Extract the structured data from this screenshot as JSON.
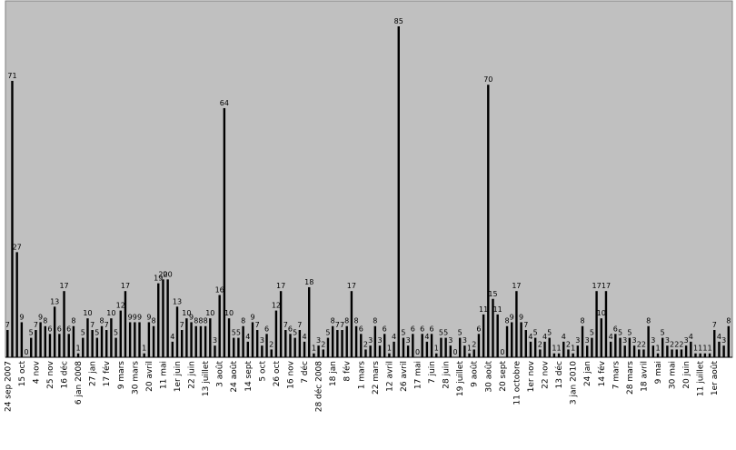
{
  "chart_data": {
    "type": "bar",
    "grid": false,
    "legend": "none",
    "ylim": [
      0,
      90
    ],
    "colors": {
      "plot_background": "#c0c0c0",
      "bars": "#000000"
    },
    "values": [
      7,
      71,
      27,
      9,
      0,
      5,
      7,
      9,
      8,
      6,
      13,
      6,
      17,
      6,
      8,
      1,
      5,
      10,
      7,
      5,
      8,
      7,
      10,
      5,
      12,
      17,
      9,
      9,
      9,
      1,
      9,
      8,
      19,
      20,
      20,
      4,
      13,
      7,
      10,
      9,
      8,
      8,
      8,
      10,
      3,
      16,
      64,
      10,
      5,
      5,
      8,
      4,
      9,
      7,
      3,
      6,
      2,
      12,
      17,
      7,
      6,
      5,
      7,
      4,
      18,
      1,
      3,
      2,
      5,
      8,
      7,
      7,
      8,
      17,
      8,
      6,
      2,
      3,
      8,
      3,
      6,
      1,
      4,
      85,
      5,
      3,
      6,
      0,
      6,
      4,
      6,
      1,
      5,
      5,
      3,
      0,
      5,
      3,
      1,
      2,
      6,
      11,
      70,
      15,
      11,
      0,
      8,
      9,
      17,
      9,
      7,
      4,
      5,
      2,
      4,
      5,
      1,
      1,
      4,
      2,
      1,
      3,
      8,
      3,
      5,
      17,
      10,
      17,
      4,
      6,
      5,
      3,
      5,
      3,
      2,
      2,
      8,
      3,
      1,
      5,
      3,
      2,
      2,
      2,
      3,
      4,
      1,
      1,
      1,
      1,
      7,
      4,
      3,
      8
    ],
    "x_tick_labels": [
      "24 sep 2007",
      "15 oct",
      "4 nov",
      "25 nov",
      "16 déc",
      "6 jan 2008",
      "27 jan",
      "17 fév",
      "9 mars",
      "30 mars",
      "20 avril",
      "11 mai",
      "1er juin",
      "22 juin",
      "13 juillet",
      "3 août",
      "24 août",
      "14 sept",
      "5 oct",
      "26 oct",
      "16 nov",
      "7 déc",
      "28 déc 2008",
      "18 jan",
      "8 fév",
      "1 mars",
      "22 mars",
      "12 avril",
      "26 avril",
      "17 mai",
      "7 juin",
      "28 juin",
      "19 juillet",
      "9 août",
      "30 août",
      "20 sept",
      "11 octobre",
      "1er nov",
      "22 nov",
      "13 déc",
      "3 jan 2010",
      "24 jan",
      "14 fév",
      "7 mars",
      "28 mars",
      "18 avril",
      "9 mai",
      "30 mai",
      "20 juin",
      "11 juillet",
      "1er août"
    ]
  }
}
